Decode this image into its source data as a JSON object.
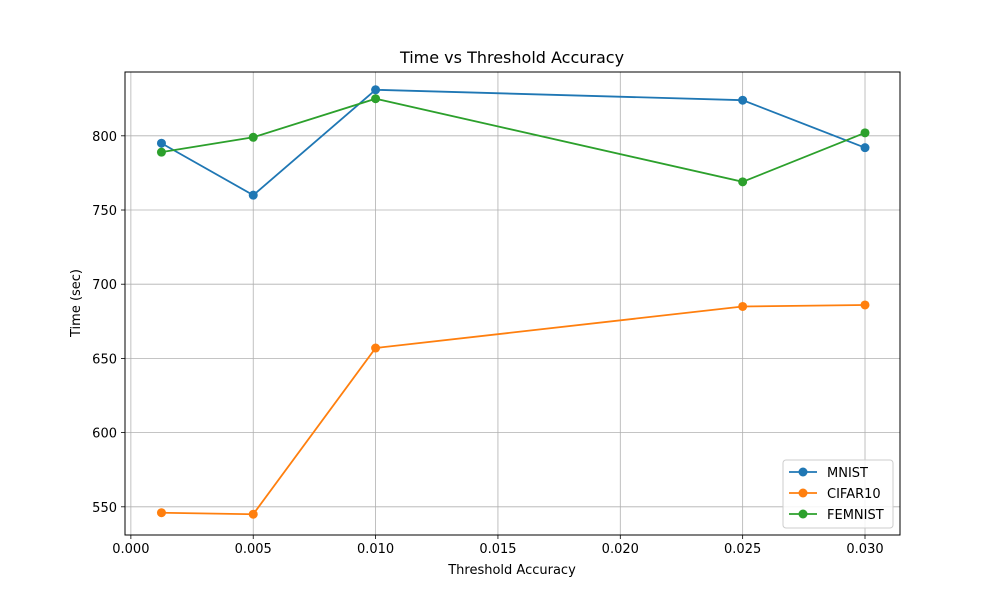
{
  "chart_data": {
    "type": "line",
    "title": "Time vs Threshold Accuracy",
    "xlabel": "Threshold Accuracy",
    "ylabel": "Time (sec)",
    "x": [
      0.00125,
      0.005,
      0.01,
      0.025,
      0.03
    ],
    "xlim": [
      -0.00024,
      0.03143
    ],
    "ylim": [
      531,
      843
    ],
    "xticks": [
      0.0,
      0.005,
      0.01,
      0.015,
      0.02,
      0.025,
      0.03
    ],
    "xtick_labels": [
      "0.000",
      "0.005",
      "0.010",
      "0.015",
      "0.020",
      "0.025",
      "0.030"
    ],
    "yticks": [
      550,
      600,
      650,
      700,
      750,
      800
    ],
    "ytick_labels": [
      "550",
      "600",
      "650",
      "700",
      "750",
      "800"
    ],
    "grid": true,
    "legend_position": "lower-right",
    "series": [
      {
        "name": "MNIST",
        "color": "#1f77b4",
        "values": [
          795,
          760,
          831,
          824,
          792
        ]
      },
      {
        "name": "CIFAR10",
        "color": "#ff7f0e",
        "values": [
          546,
          545,
          657,
          685,
          686
        ]
      },
      {
        "name": "FEMNIST",
        "color": "#2ca02c",
        "values": [
          789,
          799,
          825,
          769,
          802
        ]
      }
    ]
  }
}
